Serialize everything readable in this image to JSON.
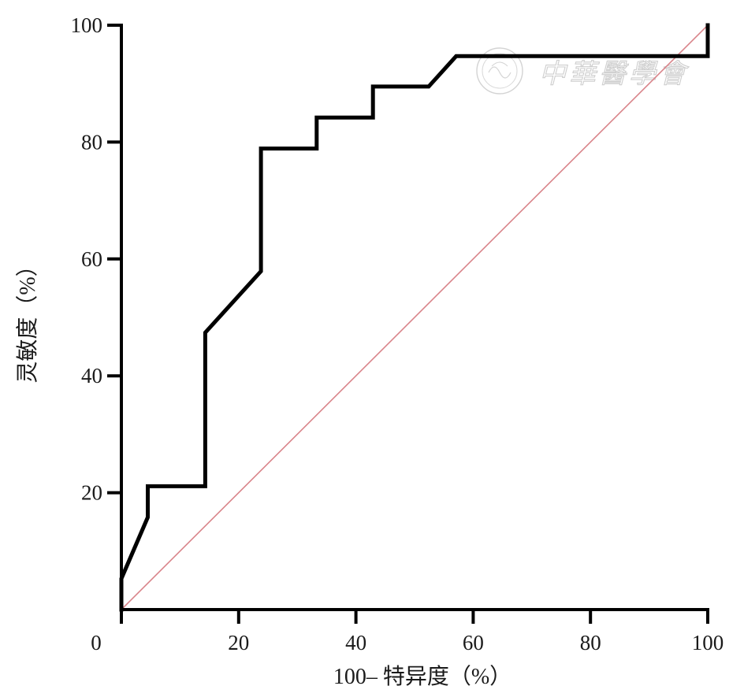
{
  "chart_data": {
    "type": "line",
    "xlabel": "100– 特异度（%）",
    "ylabel": "灵敏度（%）",
    "xlim": [
      0,
      100
    ],
    "ylim": [
      0,
      100
    ],
    "x_ticks": [
      0,
      20,
      40,
      60,
      80,
      100
    ],
    "y_ticks": [
      20,
      40,
      60,
      80,
      100
    ],
    "x_tick_labels": [
      "0",
      "20",
      "40",
      "60",
      "80",
      "100"
    ],
    "y_tick_labels": [
      "20",
      "40",
      "60",
      "80",
      "100"
    ],
    "grid": false,
    "series": [
      {
        "style": "step",
        "color": "#000000",
        "points": [
          [
            0,
            0
          ],
          [
            0,
            5.3
          ],
          [
            4.5,
            15.8
          ],
          [
            4.5,
            21.1
          ],
          [
            14.3,
            21.1
          ],
          [
            14.3,
            47.4
          ],
          [
            23.8,
            57.9
          ],
          [
            23.8,
            78.9
          ],
          [
            33.3,
            78.9
          ],
          [
            33.3,
            84.2
          ],
          [
            42.9,
            84.2
          ],
          [
            42.9,
            89.5
          ],
          [
            52.4,
            89.5
          ],
          [
            57.1,
            94.7
          ],
          [
            100,
            94.7
          ],
          [
            100,
            100
          ]
        ]
      },
      {
        "style": "reference",
        "color": "#d9848a",
        "points": [
          [
            0,
            0
          ],
          [
            100,
            100
          ]
        ]
      }
    ]
  },
  "watermark": {
    "text": "中華醫學會"
  }
}
